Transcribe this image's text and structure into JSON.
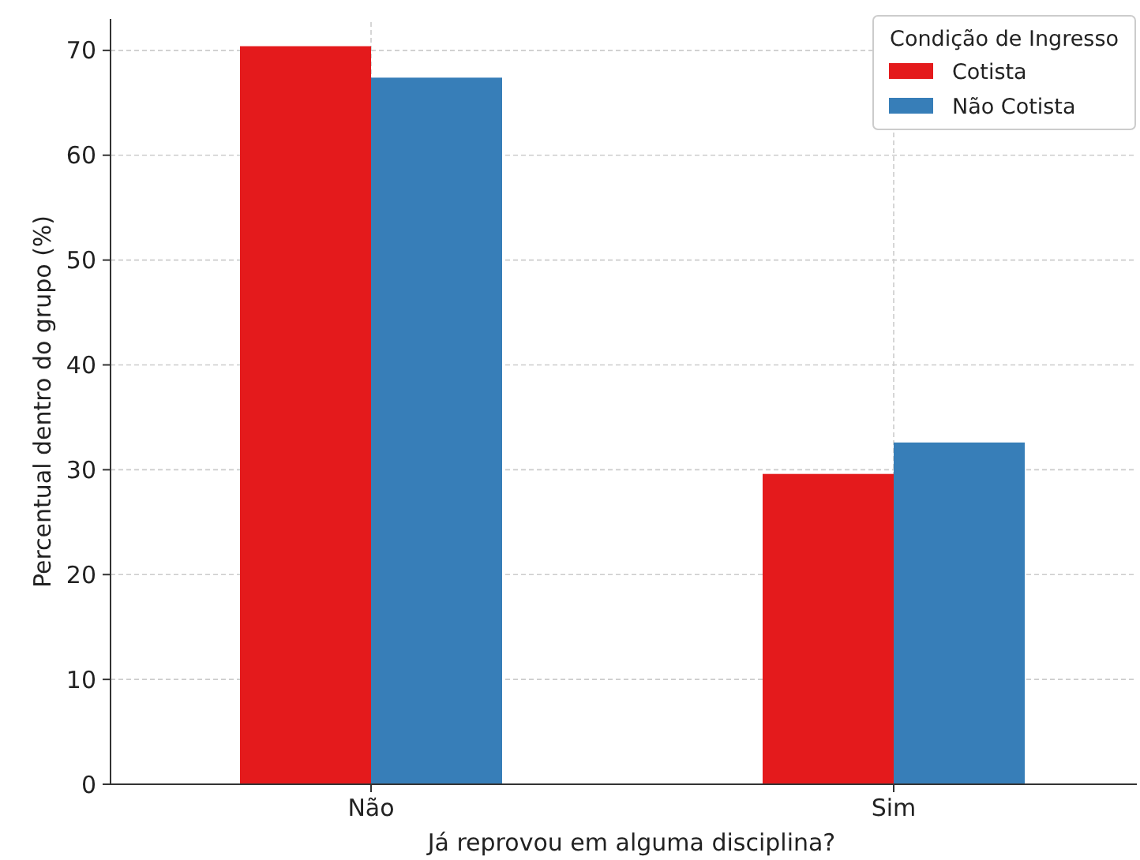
{
  "chart_data": {
    "type": "bar",
    "xlabel": "Já reprovou em alguma disciplina?",
    "ylabel": "Percentual dentro do grupo (%)",
    "legend_title": "Condição de Ingresso",
    "categories": [
      "Não",
      "Sim"
    ],
    "series": [
      {
        "name": "Cotista",
        "color": "#e41a1c",
        "values": [
          70.4,
          29.6
        ]
      },
      {
        "name": "Não Cotista",
        "color": "#377eb8",
        "values": [
          67.4,
          32.6
        ]
      }
    ],
    "ylim": [
      0,
      73
    ],
    "yticks": [
      0,
      10,
      20,
      30,
      40,
      50,
      60,
      70
    ],
    "grid": true,
    "legend": "top right"
  }
}
